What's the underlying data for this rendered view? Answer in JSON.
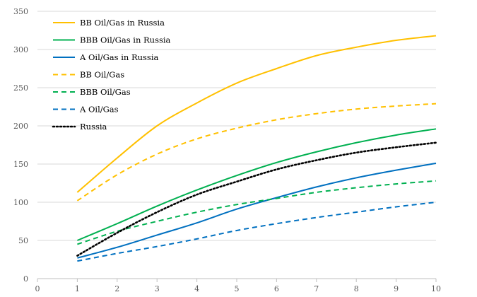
{
  "chart_data": {
    "type": "line",
    "title": "",
    "xlabel": "",
    "ylabel": "",
    "xlim": [
      0,
      10
    ],
    "ylim": [
      0,
      350
    ],
    "x_ticks": [
      0,
      1,
      2,
      3,
      4,
      5,
      6,
      7,
      8,
      9,
      10
    ],
    "y_ticks": [
      0,
      50,
      100,
      150,
      200,
      250,
      300,
      350
    ],
    "grid": "horizontal",
    "legend_position": "top-left",
    "x": [
      1,
      2,
      3,
      4,
      5,
      6,
      7,
      8,
      9,
      10
    ],
    "series": [
      {
        "name": "BB Oil/Gas in Russia",
        "color": "#ffc000",
        "dash": "solid",
        "values": [
          113,
          158,
          200,
          230,
          256,
          275,
          292,
          303,
          312,
          318
        ]
      },
      {
        "name": "BBB Oil/Gas in Russia",
        "color": "#00b050",
        "dash": "solid",
        "values": [
          50,
          72,
          95,
          116,
          135,
          152,
          166,
          178,
          188,
          196
        ]
      },
      {
        "name": "A Oil/Gas in Russia",
        "color": "#0070c0",
        "dash": "solid",
        "values": [
          27,
          41,
          57,
          73,
          91,
          106,
          120,
          132,
          142,
          151
        ]
      },
      {
        "name": "BB Oil/Gas",
        "color": "#ffc000",
        "dash": "dashed",
        "values": [
          102,
          136,
          163,
          183,
          197,
          208,
          216,
          222,
          226,
          229
        ]
      },
      {
        "name": "BBB Oil/Gas",
        "color": "#00b050",
        "dash": "dashed",
        "values": [
          45,
          62,
          75,
          87,
          97,
          105,
          113,
          119,
          124,
          128
        ]
      },
      {
        "name": "A Oil/Gas",
        "color": "#0070c0",
        "dash": "dashed",
        "values": [
          23,
          33,
          42,
          52,
          63,
          72,
          80,
          87,
          94,
          100
        ]
      },
      {
        "name": "Russia",
        "color": "#000000",
        "dash": "dotted",
        "values": [
          30,
          60,
          87,
          110,
          127,
          143,
          155,
          165,
          172,
          178
        ]
      }
    ]
  }
}
